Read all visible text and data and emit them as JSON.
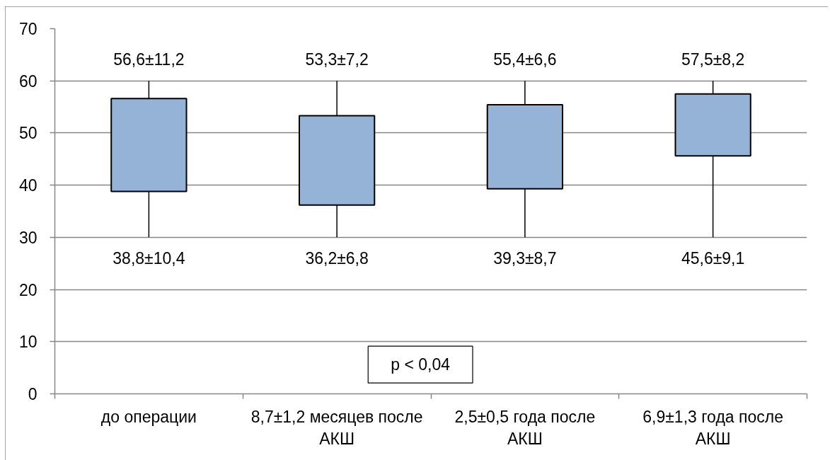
{
  "chart_data": {
    "type": "candlestick",
    "categories": [
      "до операции",
      "8,7±1,2 месяцев после АКШ",
      "2,5±0,5 года после АКШ",
      "6,9±1,3 года после АКШ"
    ],
    "ohlc": [
      [
        38.8,
        60,
        30,
        56.6
      ],
      [
        36.2,
        60,
        30,
        53.3
      ],
      [
        39.3,
        60,
        30,
        55.4
      ],
      [
        45.6,
        60,
        30,
        57.5
      ]
    ],
    "color": "#95b3d7",
    "ylim": [
      0,
      70
    ],
    "yticks": [
      0,
      10,
      20,
      30,
      40,
      50,
      60,
      70
    ],
    "grid": "y",
    "annotations": [
      "56,6±11,2",
      "53,3±7,2",
      "55,4±6,6",
      "57,5±8,2",
      "38,8±10,4",
      "36,2±6,8",
      "39,3±8,7",
      "45,6±9,1",
      "p < 0,04"
    ]
  }
}
